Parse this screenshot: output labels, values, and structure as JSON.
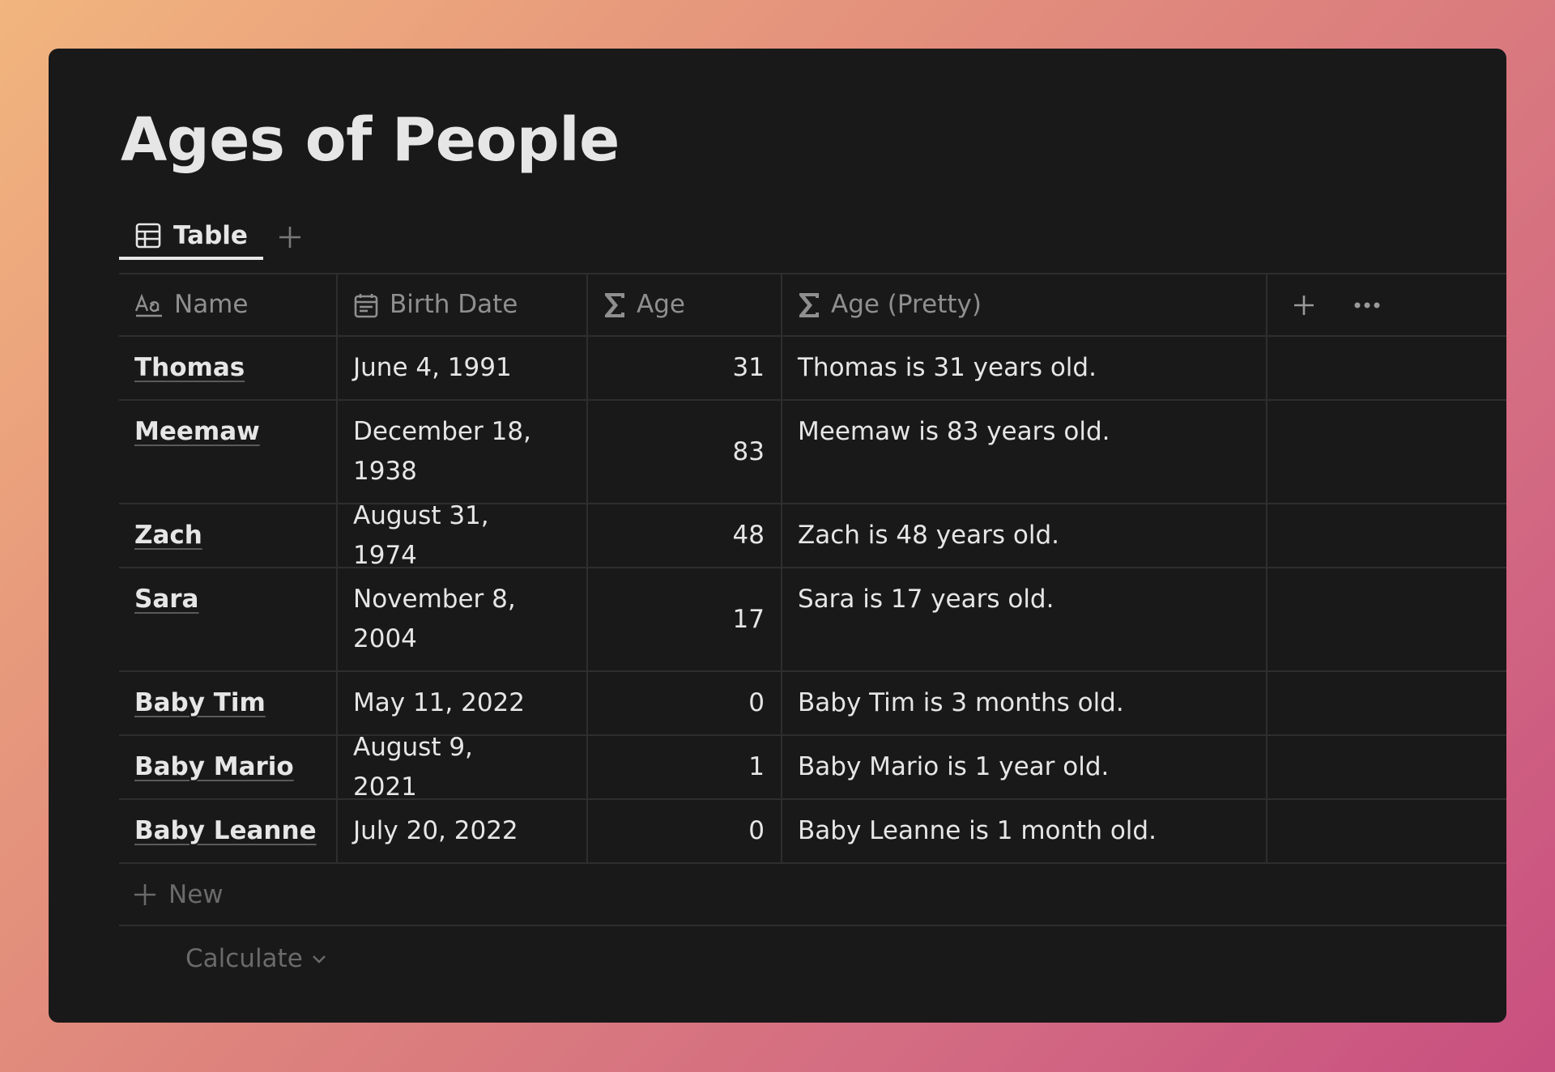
{
  "page": {
    "title": "Ages of People"
  },
  "tabs": [
    {
      "label": "Table"
    }
  ],
  "columns": {
    "name": "Name",
    "birth_date": "Birth Date",
    "age": "Age",
    "age_pretty": "Age (Pretty)"
  },
  "rows": [
    {
      "name": "Thomas",
      "birth_date": "June 4, 1991",
      "age": "31",
      "age_pretty": "Thomas is 31 years old."
    },
    {
      "name": "Meemaw",
      "birth_date": "December 18, 1938",
      "age": "83",
      "age_pretty": "Meemaw is 83 years old."
    },
    {
      "name": "Zach",
      "birth_date": "August 31, 1974",
      "age": "48",
      "age_pretty": "Zach is 48 years old."
    },
    {
      "name": "Sara",
      "birth_date": "November 8, 2004",
      "age": "17",
      "age_pretty": "Sara is 17 years old."
    },
    {
      "name": "Baby Tim",
      "birth_date": "May 11, 2022",
      "age": "0",
      "age_pretty": "Baby Tim is 3 months old."
    },
    {
      "name": "Baby Mario",
      "birth_date": "August 9, 2021",
      "age": "1",
      "age_pretty": "Baby Mario is 1 year old."
    },
    {
      "name": "Baby Leanne",
      "birth_date": "July 20, 2022",
      "age": "0",
      "age_pretty": "Baby Leanne is 1 month old."
    }
  ],
  "footer": {
    "new_label": "New",
    "calculate_label": "Calculate"
  },
  "icons": {
    "tab": "table-icon",
    "add_view": "plus-icon",
    "name_column": "text-type-icon",
    "birth_date_column": "calendar-icon",
    "formula_column": "sigma-icon",
    "add_column": "plus-icon",
    "more": "ellipsis-icon",
    "calculate": "chevron-down-icon"
  },
  "colors": {
    "window_bg": "#191919",
    "text": "#e6e6e6",
    "muted_text": "#8f8f8f",
    "border": "#2e2e2e"
  }
}
